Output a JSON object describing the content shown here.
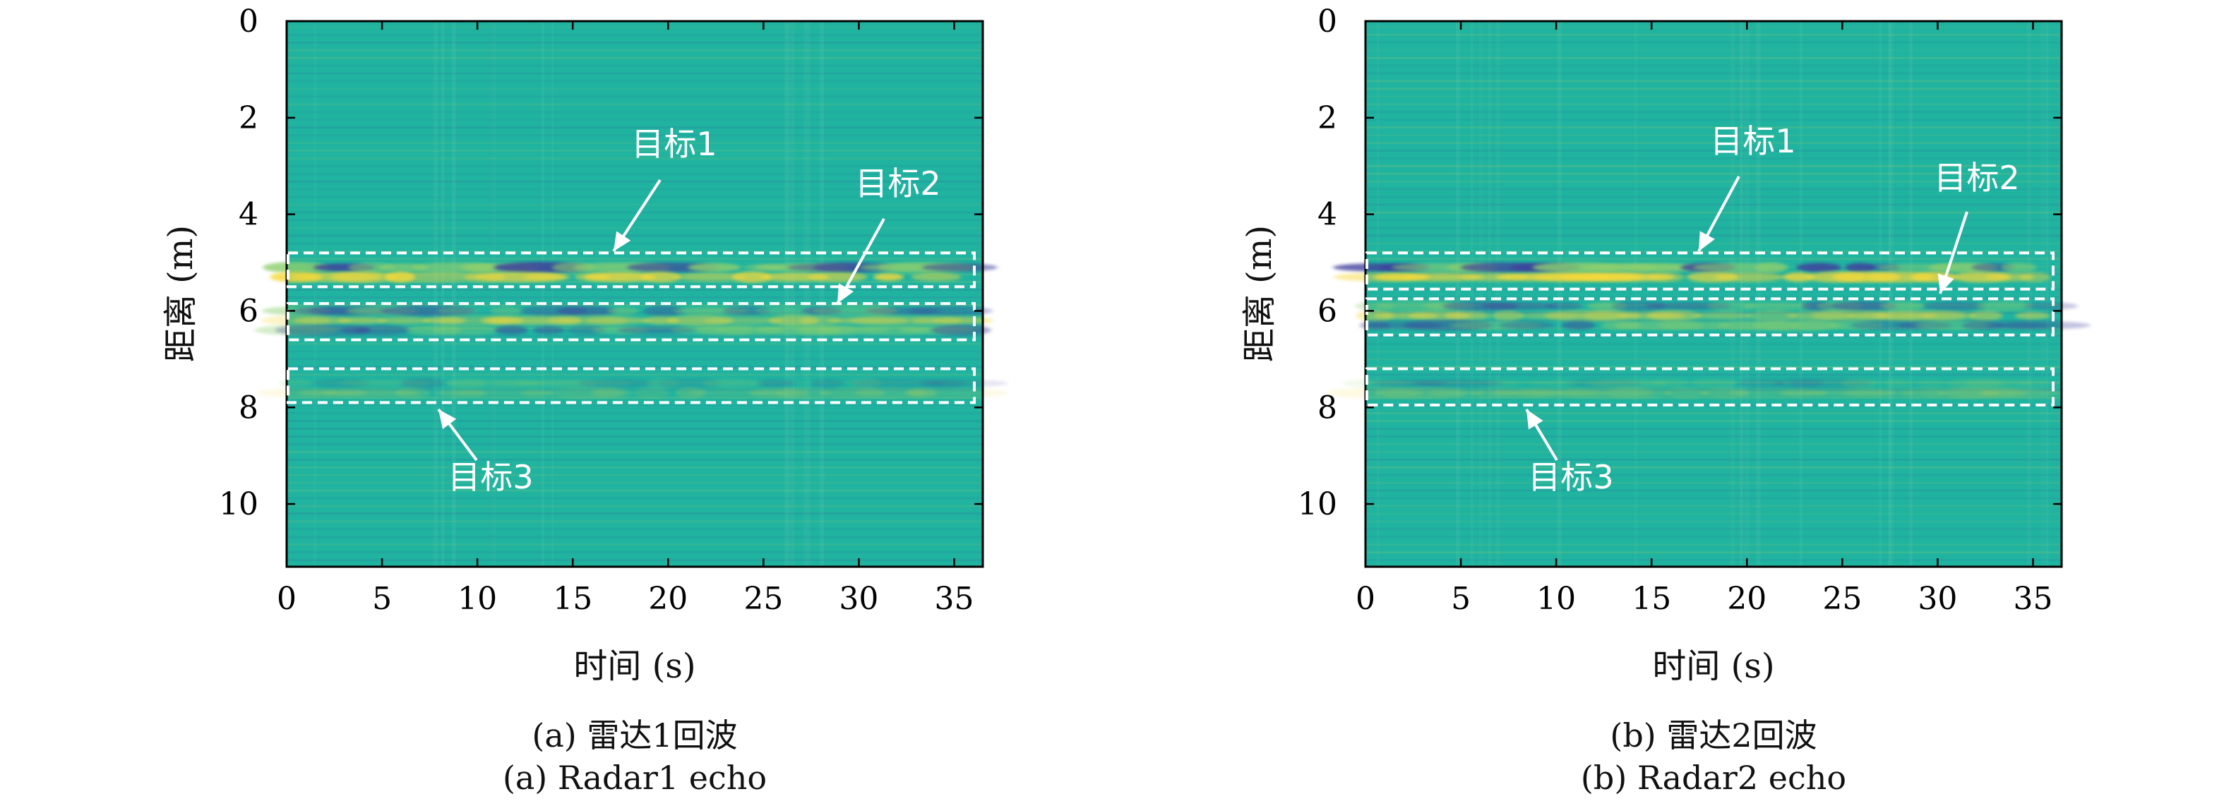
{
  "chart_data": [
    {
      "type": "heatmap",
      "panel": "a",
      "caption_cn": "(a) 雷达1回波",
      "caption_en": "(a) Radar1 echo",
      "xlabel": "时间 (s)",
      "ylabel": "距离 (m)",
      "xlim": [
        0,
        36.5
      ],
      "ylim": [
        11.3,
        0
      ],
      "xticks": [
        "0",
        "5",
        "10",
        "15",
        "20",
        "25",
        "30",
        "35"
      ],
      "yticks": [
        "0",
        "2",
        "4",
        "6",
        "8",
        "10"
      ],
      "colormap": "parula",
      "colors": {
        "background": "#1fb3a0",
        "high": "#f5d93a",
        "low": "#3f3d9c",
        "box": "#ffffff"
      },
      "targets": [
        {
          "label": "目标1",
          "range_m": [
            4.8,
            5.5
          ]
        },
        {
          "label": "目标2",
          "range_m": [
            5.85,
            6.6
          ]
        },
        {
          "label": "目标3",
          "range_m": [
            7.2,
            7.9
          ]
        }
      ]
    },
    {
      "type": "heatmap",
      "panel": "b",
      "caption_cn": "(b) 雷达2回波",
      "caption_en": "(b) Radar2 echo",
      "xlabel": "时间 (s)",
      "ylabel": "距离 (m)",
      "xlim": [
        0,
        36.5
      ],
      "ylim": [
        11.3,
        0
      ],
      "xticks": [
        "0",
        "5",
        "10",
        "15",
        "20",
        "25",
        "30",
        "35"
      ],
      "yticks": [
        "0",
        "2",
        "4",
        "6",
        "8",
        "10"
      ],
      "colormap": "parula",
      "colors": {
        "background": "#1fb3a0",
        "high": "#f5d93a",
        "low": "#3f3d9c",
        "box": "#ffffff"
      },
      "targets": [
        {
          "label": "目标1",
          "range_m": [
            4.8,
            5.55
          ]
        },
        {
          "label": "目标2",
          "range_m": [
            5.75,
            6.5
          ]
        },
        {
          "label": "目标3",
          "range_m": [
            7.2,
            7.95
          ]
        }
      ]
    }
  ]
}
